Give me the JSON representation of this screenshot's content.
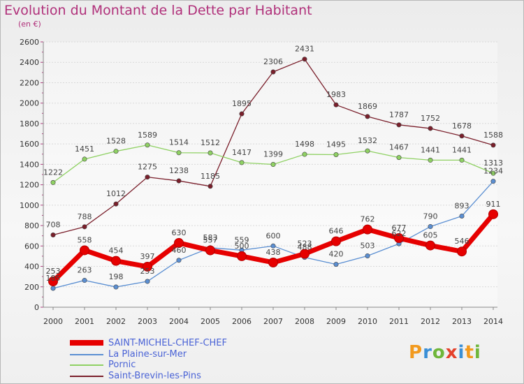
{
  "title": "Evolution du Montant de la Dette par Habitant",
  "subtitle": "(en €)",
  "logo": "Proxiti",
  "chart_data": {
    "type": "line",
    "title": "Evolution du Montant de la Dette par Habitant",
    "subtitle": "(en €)",
    "xlabel": "",
    "ylabel": "",
    "x": [
      "2000",
      "2001",
      "2002",
      "2003",
      "2004",
      "2005",
      "2006",
      "2007",
      "2008",
      "2009",
      "2010",
      "2011",
      "2012",
      "2013",
      "2014"
    ],
    "ylim": [
      0,
      2600
    ],
    "yticks": [
      0,
      200,
      400,
      600,
      800,
      1000,
      1200,
      1400,
      1600,
      1800,
      2000,
      2200,
      2400,
      2600
    ],
    "grid": "horizontal",
    "legend": "bottom-left",
    "series": [
      {
        "name": "SAINT-MICHEL-CHEF-CHEF",
        "color": "#e60000",
        "emphasis": true,
        "values": [
          253,
          558,
          454,
          397,
          630,
          557,
          500,
          438,
          523,
          646,
          762,
          677,
          605,
          546,
          911
        ]
      },
      {
        "name": "La Plaine-sur-Mer",
        "color": "#5b8fd2",
        "values": [
          185,
          263,
          198,
          253,
          460,
          583,
          559,
          600,
          488,
          420,
          503,
          622,
          790,
          893,
          1234
        ]
      },
      {
        "name": "Pornic",
        "color": "#8fd163",
        "values": [
          1222,
          1451,
          1528,
          1589,
          1514,
          1512,
          1417,
          1399,
          1498,
          1495,
          1532,
          1467,
          1441,
          1441,
          1313
        ]
      },
      {
        "name": "Saint-Brevin-les-Pins",
        "color": "#7a1f2b",
        "values": [
          708,
          788,
          1012,
          1275,
          1238,
          1185,
          1895,
          2306,
          2431,
          1983,
          1869,
          1787,
          1752,
          1678,
          1588
        ]
      }
    ]
  }
}
